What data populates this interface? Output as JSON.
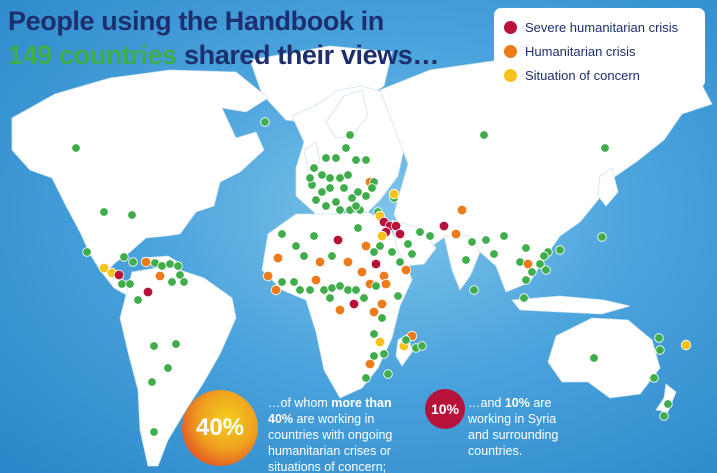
{
  "title": {
    "line1": "People using the Handbook in",
    "highlight": "149 countries",
    "line2_rest": " shared their views…"
  },
  "legend": [
    {
      "label": "Severe humanitarian crisis",
      "color": "#b8123b",
      "icon": "legend-dot-severe"
    },
    {
      "label": "Humanitarian crisis",
      "color": "#ef7a1a",
      "icon": "legend-dot-crisis"
    },
    {
      "label": "Situation of concern",
      "color": "#f9c21a",
      "icon": "legend-dot-concern"
    }
  ],
  "other_dot_color": "#3fad49",
  "stats": {
    "forty": {
      "badge": "40%",
      "t1": "…of whom ",
      "b1": "more than",
      "b2": "40%",
      "t2": " are working in",
      "t3": "countries with ongoing",
      "t4": "humanitarian crises or",
      "t5": "situations of concern;"
    },
    "ten": {
      "badge": "10%",
      "t1": "…and ",
      "b1": "10%",
      "t2": " are",
      "t3": "working in Syria",
      "t4": "and surrounding",
      "t5": "countries."
    }
  }
}
